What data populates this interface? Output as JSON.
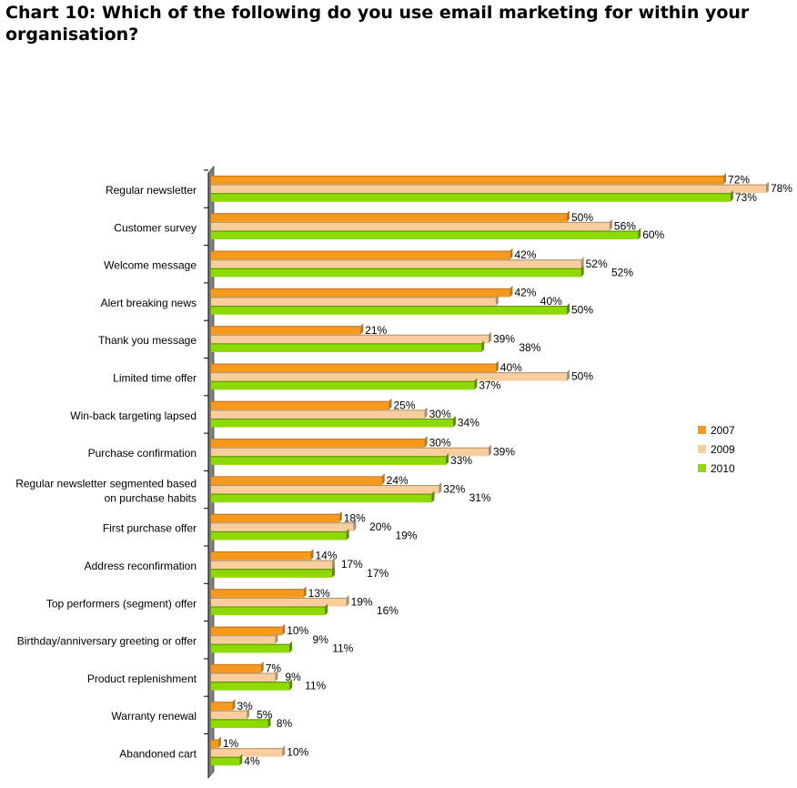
{
  "chart_data": {
    "type": "bar",
    "orientation": "horizontal",
    "title": "Chart 10: Which of the following do you use email marketing for within your organisation?",
    "categories": [
      "Regular newsletter",
      "Customer survey",
      "Welcome message",
      "Alert breaking news",
      "Thank you message",
      "Limited time offer",
      "Win-back targeting lapsed",
      "Purchase confirmation",
      "Regular newsletter segmented based on purchase habits",
      "First purchase offer",
      "Address reconfirmation",
      "Top performers (segment) offer",
      "Birthday/anniversary greeting or offer",
      "Product replenishment",
      "Warranty renewal",
      "Abandoned cart"
    ],
    "series": [
      {
        "name": "2007",
        "color": "#F7991C",
        "values": [
          72,
          50,
          42,
          42,
          21,
          40,
          25,
          30,
          24,
          18,
          14,
          13,
          10,
          7,
          3,
          1
        ]
      },
      {
        "name": "2009",
        "color": "#F9CE9C",
        "values": [
          78,
          56,
          52,
          40,
          39,
          50,
          30,
          39,
          32,
          20,
          17,
          19,
          9,
          9,
          5,
          10
        ]
      },
      {
        "name": "2010",
        "color": "#8ED900",
        "values": [
          73,
          60,
          52,
          50,
          38,
          37,
          34,
          33,
          31,
          19,
          17,
          16,
          11,
          11,
          8,
          4
        ]
      }
    ],
    "value_suffix": "%",
    "xlim": [
      0,
      80
    ],
    "grid": false,
    "legend": "right"
  }
}
